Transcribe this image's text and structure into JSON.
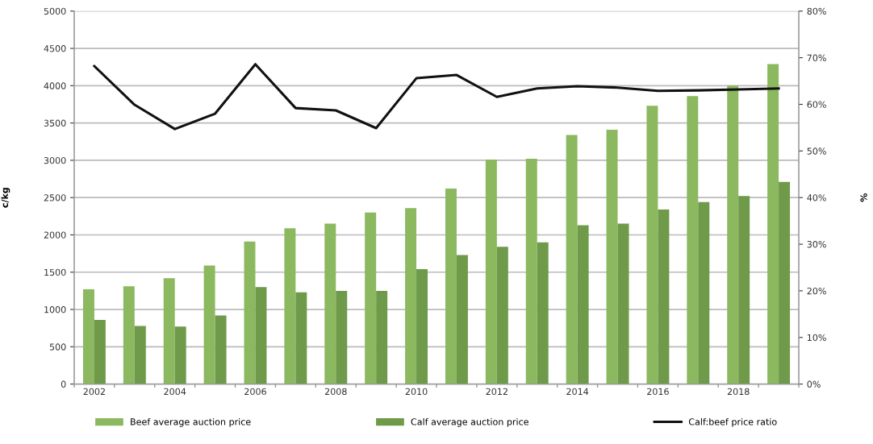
{
  "chart_data": {
    "type": "bar",
    "ylabel": "c/kg",
    "y2label": "%",
    "categories": [
      "2002",
      null,
      "2004",
      null,
      "2006",
      null,
      "2008",
      null,
      "2010",
      null,
      "2012",
      null,
      "2014",
      null,
      "2016",
      null,
      "2018",
      null
    ],
    "series": [
      {
        "name": "Beef average auction price",
        "color": "#8cb860",
        "values": [
          1270,
          1310,
          1420,
          1590,
          1910,
          2090,
          2150,
          2300,
          2360,
          2620,
          3010,
          3020,
          3340,
          3410,
          3730,
          3860,
          4000,
          4290
        ]
      },
      {
        "name": "Calf average auction price",
        "color": "#6e9a4a",
        "values": [
          860,
          780,
          770,
          920,
          1300,
          1230,
          1250,
          1250,
          1540,
          1730,
          1840,
          1900,
          2130,
          2150,
          2340,
          2440,
          2520,
          2710
        ]
      },
      {
        "name": "Calf:beef price ratio",
        "type": "line",
        "axis": "y2",
        "color": "#111111",
        "values": [
          68.2,
          59.9,
          54.7,
          58.0,
          68.6,
          59.2,
          58.7,
          54.9,
          65.6,
          66.3,
          61.6,
          63.4,
          63.9,
          63.6,
          62.9,
          63.0,
          63.2,
          63.4
        ]
      }
    ],
    "ylim": [
      0,
      5000
    ],
    "yticks": [
      0,
      500,
      1000,
      1500,
      2000,
      2500,
      3000,
      3500,
      4000,
      4500,
      5000
    ],
    "y2lim": [
      0,
      80
    ],
    "y2ticks": [
      {
        "value": 0,
        "label": "0%"
      },
      {
        "value": 10,
        "label": "10%"
      },
      {
        "value": 20,
        "label": "20%"
      },
      {
        "value": 30,
        "label": "30%"
      },
      {
        "value": 40,
        "label": "40%"
      },
      {
        "value": 50,
        "label": "50%"
      },
      {
        "value": 60,
        "label": "60%"
      },
      {
        "value": 70,
        "label": "70%"
      },
      {
        "value": 80,
        "label": "80%"
      }
    ],
    "grid": "y",
    "legend": "bottom",
    "marker": "none",
    "line_style": "solid"
  }
}
